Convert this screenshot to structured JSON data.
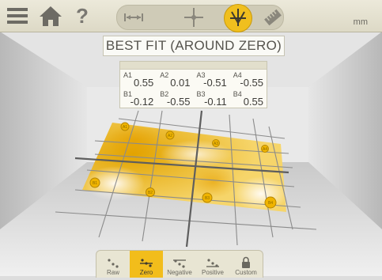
{
  "toolbar": {
    "icons": [
      "menu-icon",
      "home-icon",
      "help-icon"
    ],
    "help_glyph": "?",
    "modes": [
      {
        "name": "measure-distance-icon",
        "active": false
      },
      {
        "name": "crosshair-target-icon",
        "active": false
      },
      {
        "name": "flatness-icon",
        "active": true
      },
      {
        "name": "ruler-icon",
        "active": false
      }
    ],
    "unit": "mm"
  },
  "title": "BEST FIT (AROUND ZERO)",
  "values": {
    "rows": [
      [
        {
          "label": "A1",
          "value": "0.55"
        },
        {
          "label": "A2",
          "value": "0.01"
        },
        {
          "label": "A3",
          "value": "-0.51"
        },
        {
          "label": "A4",
          "value": "-0.55"
        }
      ],
      [
        {
          "label": "B1",
          "value": "-0.12"
        },
        {
          "label": "B2",
          "value": "-0.55"
        },
        {
          "label": "B3",
          "value": "-0.11"
        },
        {
          "label": "B4",
          "value": "0.55"
        }
      ]
    ]
  },
  "surface_points": [
    "A1",
    "A2",
    "A3",
    "A4",
    "B1",
    "B2",
    "B3",
    "B4"
  ],
  "colors": {
    "accent": "#f2bd1b",
    "surface_high": "#e2a400",
    "surface_low": "#fff7dc",
    "room": "#dcdcdc"
  },
  "bottom_modes": [
    {
      "label": "Raw",
      "active": false,
      "icon": "raw-icon"
    },
    {
      "label": "Zero",
      "active": true,
      "icon": "zero-icon"
    },
    {
      "label": "Negative",
      "active": false,
      "icon": "negative-icon"
    },
    {
      "label": "Positive",
      "active": false,
      "icon": "positive-icon"
    },
    {
      "label": "Custom",
      "active": false,
      "icon": "lock-icon"
    }
  ]
}
